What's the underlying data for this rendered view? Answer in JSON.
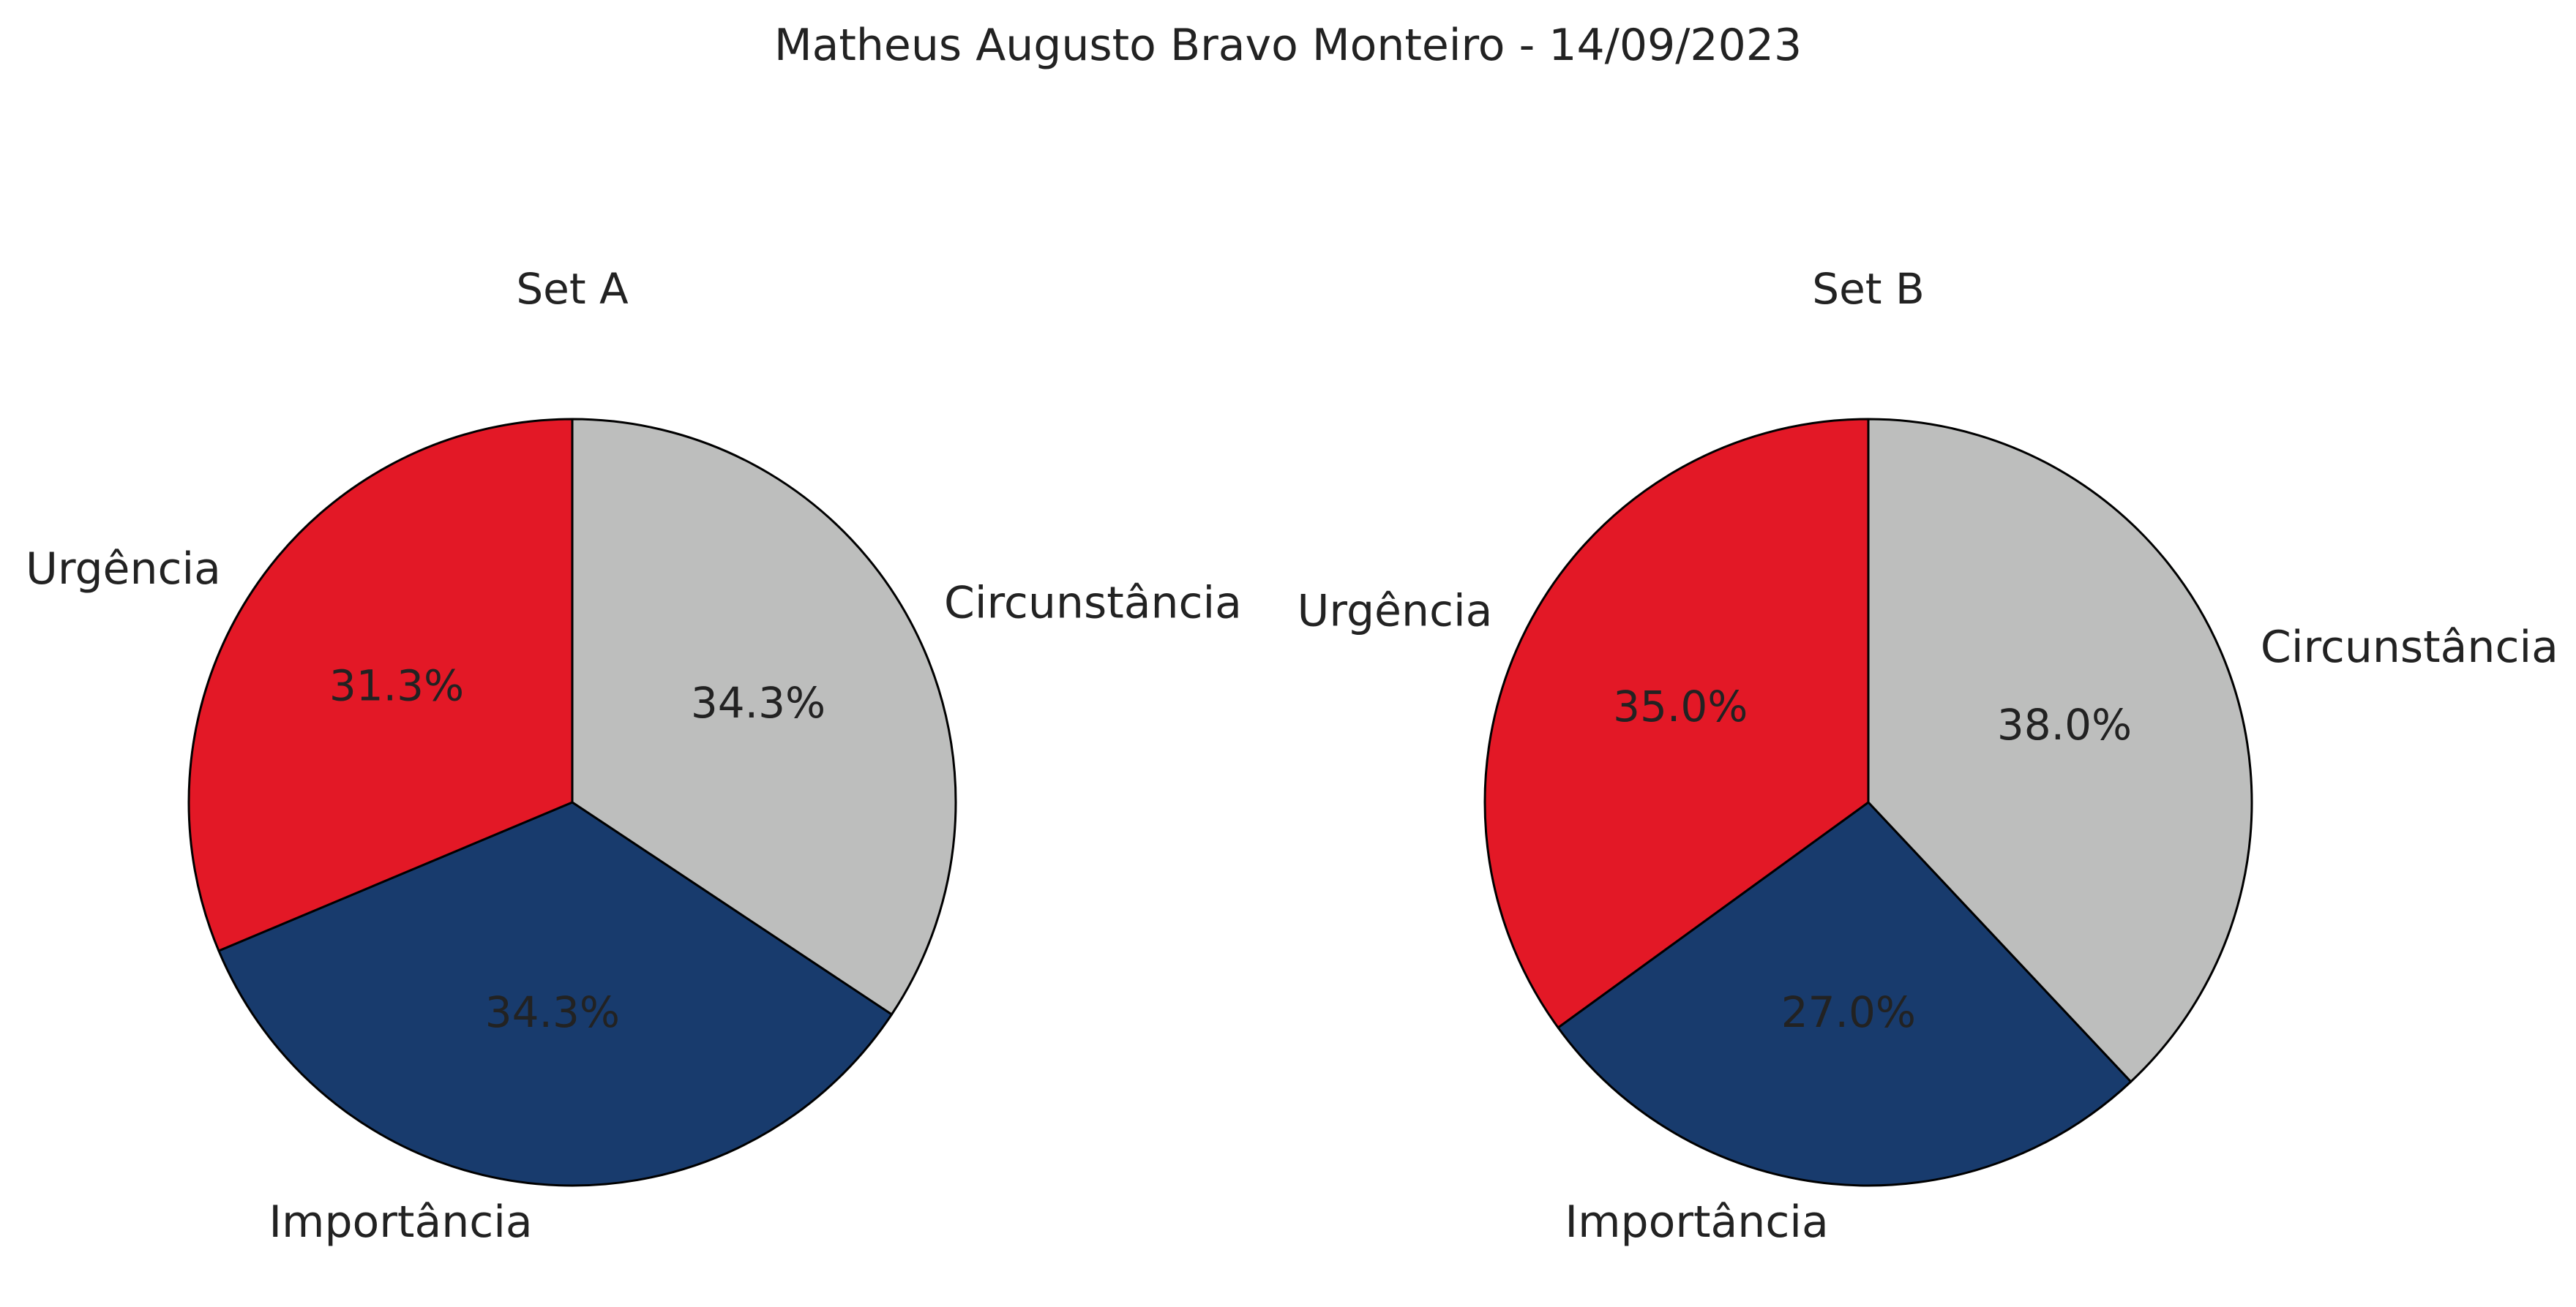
{
  "chart_data": {
    "type": "pie",
    "title": "Matheus Augusto Bravo Monteiro - 14/09/2023",
    "categories": [
      "Circunstância",
      "Importância",
      "Urgência"
    ],
    "colors": {
      "Circunstância": "#bdbebd",
      "Importância": "#183b6d",
      "Urgência": "#e31826"
    },
    "start_angle_deg": 90,
    "direction": "clockwise",
    "edge_color": "#000000",
    "charts": [
      {
        "title": "Set A",
        "values": [
          34.3,
          34.3,
          31.3
        ],
        "value_labels": [
          "34.3%",
          "34.3%",
          "31.3%"
        ]
      },
      {
        "title": "Set B",
        "values": [
          38.0,
          27.0,
          35.0
        ],
        "value_labels": [
          "38.0%",
          "27.0%",
          "35.0%"
        ]
      }
    ]
  }
}
